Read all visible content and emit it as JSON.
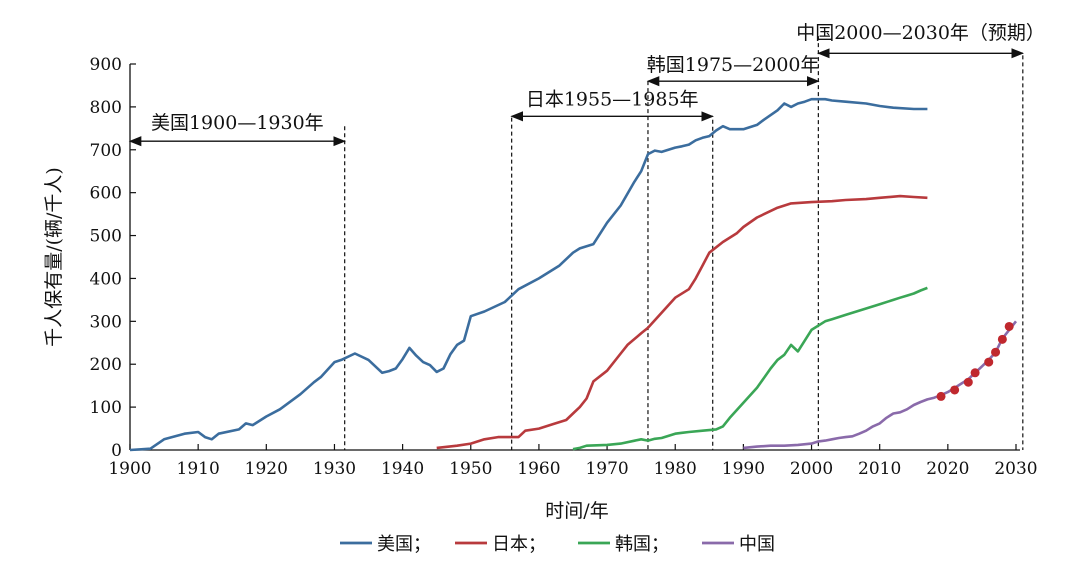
{
  "chart_data": {
    "type": "line",
    "xlabel": "时间/年",
    "ylabel": "千人保有量/(辆/千人)",
    "xlim": [
      1900,
      2030
    ],
    "ylim": [
      0,
      900
    ],
    "x_ticks": [
      "1900",
      "1910",
      "1920",
      "1930",
      "1940",
      "1950",
      "1960",
      "1970",
      "1980",
      "1990",
      "2000",
      "2010",
      "2020",
      "2030"
    ],
    "y_ticks": [
      "0",
      "100",
      "200",
      "300",
      "400",
      "500",
      "600",
      "700",
      "800",
      "900"
    ],
    "legend_position": "bottom-center",
    "series": [
      {
        "name": "美国；",
        "color": "#3b6d9e",
        "x": [
          1900,
          1903,
          1905,
          1908,
          1910,
          1911,
          1912,
          1913,
          1916,
          1917,
          1918,
          1920,
          1922,
          1925,
          1927,
          1928,
          1930,
          1931,
          1933,
          1935,
          1937,
          1938,
          1939,
          1940,
          1941,
          1942,
          1943,
          1944,
          1945,
          1946,
          1947,
          1948,
          1949,
          1950,
          1952,
          1955,
          1956,
          1957,
          1960,
          1963,
          1965,
          1966,
          1968,
          1970,
          1972,
          1974,
          1975,
          1976,
          1977,
          1978,
          1979,
          1980,
          1981,
          1982,
          1983,
          1984,
          1985,
          1986,
          1987,
          1988,
          1989,
          1990,
          1992,
          1993,
          1995,
          1996,
          1997,
          1998,
          1999,
          2000,
          2002,
          2003,
          2005,
          2008,
          2010,
          2012,
          2015,
          2017
        ],
        "y": [
          0,
          3,
          25,
          38,
          42,
          30,
          25,
          38,
          48,
          62,
          58,
          78,
          95,
          130,
          158,
          170,
          205,
          210,
          225,
          210,
          180,
          184,
          190,
          212,
          238,
          220,
          205,
          198,
          182,
          190,
          223,
          245,
          255,
          312,
          323,
          345,
          360,
          375,
          400,
          430,
          460,
          470,
          480,
          530,
          570,
          625,
          650,
          690,
          698,
          695,
          700,
          705,
          708,
          712,
          722,
          728,
          732,
          745,
          755,
          748,
          748,
          748,
          758,
          770,
          792,
          808,
          800,
          808,
          812,
          818,
          818,
          815,
          812,
          808,
          802,
          798,
          795,
          795
        ]
      },
      {
        "name": "日本；",
        "color": "#b83a3d",
        "x": [
          1945,
          1948,
          1950,
          1952,
          1954,
          1956,
          1957,
          1958,
          1960,
          1962,
          1964,
          1965,
          1966,
          1967,
          1968,
          1970,
          1972,
          1973,
          1975,
          1976,
          1978,
          1980,
          1982,
          1983,
          1984,
          1985,
          1987,
          1989,
          1990,
          1992,
          1995,
          1997,
          2000,
          2003,
          2005,
          2008,
          2010,
          2013,
          2015,
          2017
        ],
        "y": [
          5,
          10,
          15,
          25,
          30,
          30,
          30,
          45,
          50,
          60,
          70,
          85,
          100,
          120,
          160,
          185,
          225,
          245,
          272,
          285,
          320,
          355,
          375,
          400,
          430,
          460,
          485,
          505,
          520,
          542,
          565,
          575,
          578,
          580,
          583,
          585,
          588,
          592,
          590,
          588
        ]
      },
      {
        "name": "韩国；",
        "color": "#3aa656",
        "x": [
          1965,
          1966,
          1967,
          1970,
          1972,
          1975,
          1976,
          1977,
          1978,
          1980,
          1981,
          1982,
          1984,
          1986,
          1987,
          1988,
          1990,
          1992,
          1994,
          1995,
          1996,
          1997,
          1998,
          2000,
          2002,
          2003,
          2005,
          2008,
          2010,
          2012,
          2013,
          2014,
          2015,
          2016,
          2017
        ],
        "y": [
          2,
          5,
          10,
          12,
          15,
          25,
          22,
          26,
          28,
          38,
          40,
          42,
          45,
          48,
          55,
          75,
          110,
          145,
          190,
          210,
          222,
          245,
          230,
          280,
          300,
          305,
          315,
          330,
          340,
          350,
          355,
          360,
          365,
          372,
          378
        ]
      },
      {
        "name": "中国",
        "color": "#8a6aaa",
        "x": [
          1990,
          1992,
          1994,
          1996,
          1998,
          2000,
          2001,
          2002,
          2003,
          2004,
          2005,
          2006,
          2007,
          2008,
          2009,
          2010,
          2011,
          2012,
          2013,
          2014,
          2015,
          2016,
          2017,
          2018,
          2019,
          2020,
          2021,
          2022,
          2023,
          2024,
          2025,
          2026,
          2027,
          2028,
          2029,
          2030
        ],
        "y": [
          5,
          8,
          10,
          10,
          12,
          15,
          20,
          22,
          25,
          28,
          30,
          32,
          38,
          45,
          55,
          62,
          75,
          85,
          88,
          95,
          105,
          112,
          118,
          122,
          128,
          135,
          145,
          155,
          165,
          180,
          195,
          210,
          228,
          260,
          280,
          300
        ]
      }
    ],
    "projection": {
      "color": "#c0282e",
      "x": [
        2019,
        2021,
        2023,
        2024,
        2026,
        2027,
        2028,
        2029
      ],
      "y": [
        125,
        140,
        158,
        180,
        205,
        228,
        258,
        288
      ]
    },
    "annotations": [
      {
        "label": "美国1900—1930年",
        "from": 1900,
        "to": 1931.5,
        "y": 720,
        "label_y": 765,
        "drop_line": 1931.5,
        "drop_top": 755
      },
      {
        "label": "日本1955—1985年",
        "from": 1956,
        "to": 1985.5,
        "y": 778,
        "label_y": 820,
        "drop_line": 1956,
        "drop_top": 775,
        "drop_line_2": 1985.5,
        "drop_top_2": 770
      },
      {
        "label": "韩国1975—2000年",
        "from": 1976,
        "to": 2001,
        "y": 860,
        "label_y": 900,
        "drop_line": 1976,
        "drop_top": 860
      },
      {
        "label": "中国2000—2030年（预期）",
        "from": 2001,
        "to": 2031,
        "y": 925,
        "label_y": 975,
        "drop_line": 2001,
        "drop_top": 965,
        "drop_line_2": 2031,
        "drop_top_2": 920
      }
    ]
  }
}
